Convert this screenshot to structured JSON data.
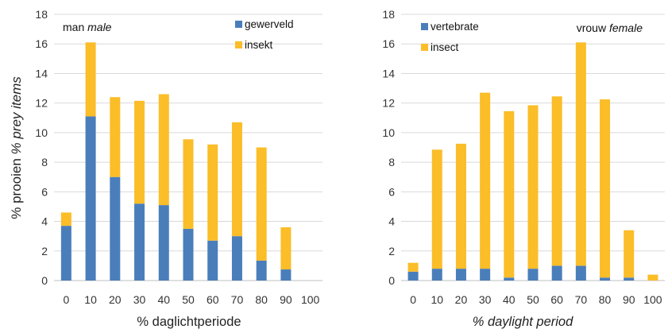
{
  "colors": {
    "vertebrate": "#4a7ebb",
    "insect": "#fbbd28",
    "grid": "#d9d9d9",
    "axis": "#bfbfbf"
  },
  "y_axis_label": {
    "nl": "% prooien",
    "en": "% prey items"
  },
  "chart_data": [
    {
      "type": "bar",
      "stacked": true,
      "panel_title": {
        "nl": "man",
        "en": "male"
      },
      "xlabel": "% daglichtperiode",
      "x_ticks": [
        "0",
        "10",
        "20",
        "30",
        "40",
        "50",
        "60",
        "70",
        "80",
        "90",
        "100"
      ],
      "y_ticks": [
        "0",
        "2",
        "4",
        "6",
        "8",
        "10",
        "12",
        "14",
        "16",
        "18"
      ],
      "ylim": [
        0,
        18
      ],
      "grid": true,
      "legend_position": "top-right",
      "series": [
        {
          "name": "gewerveld",
          "color_key": "vertebrate",
          "values": [
            3.7,
            11.1,
            7.0,
            5.2,
            5.1,
            3.5,
            2.7,
            3.0,
            1.35,
            0.75,
            0
          ]
        },
        {
          "name": "insekt",
          "color_key": "insect",
          "values": [
            0.9,
            5.0,
            5.4,
            6.95,
            7.5,
            6.05,
            6.5,
            7.7,
            7.65,
            2.85,
            0
          ]
        }
      ]
    },
    {
      "type": "bar",
      "stacked": true,
      "panel_title": {
        "nl": "vrouw",
        "en": "female"
      },
      "xlabel": "% daylight period",
      "x_ticks": [
        "0",
        "10",
        "20",
        "30",
        "40",
        "50",
        "60",
        "70",
        "80",
        "90",
        "100"
      ],
      "y_ticks": [
        "0",
        "2",
        "4",
        "6",
        "8",
        "10",
        "12",
        "14",
        "16",
        "18"
      ],
      "ylim": [
        0,
        18
      ],
      "grid": true,
      "legend_position": "top-left",
      "series": [
        {
          "name": "vertebrate",
          "color_key": "vertebrate",
          "values": [
            0.6,
            0.8,
            0.8,
            0.8,
            0.2,
            0.8,
            1.0,
            1.0,
            0.2,
            0.2,
            0
          ]
        },
        {
          "name": "insect",
          "color_key": "insect",
          "values": [
            0.6,
            8.05,
            8.45,
            11.9,
            11.25,
            11.05,
            11.45,
            15.1,
            12.05,
            3.2,
            0.4
          ]
        }
      ]
    }
  ]
}
